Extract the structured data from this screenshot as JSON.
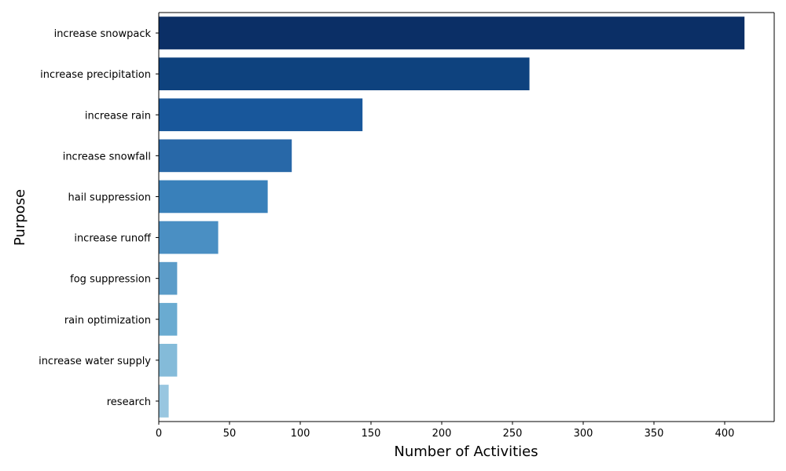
{
  "chart_data": {
    "type": "bar",
    "orientation": "horizontal",
    "title": "",
    "xlabel": "Number of Activities",
    "ylabel": "Purpose",
    "xlim": [
      0,
      435
    ],
    "xticks": [
      0,
      50,
      100,
      150,
      200,
      250,
      300,
      350,
      400
    ],
    "grid": false,
    "legend": "none",
    "categories": [
      "increase snowpack",
      "increase precipitation",
      "increase rain",
      "increase snowfall",
      "hail suppression",
      "increase runoff",
      "fog suppression",
      "rain optimization",
      "increase water supply",
      "research"
    ],
    "values": [
      414,
      262,
      144,
      94,
      77,
      42,
      13,
      13,
      13,
      7
    ],
    "colors": [
      "#0b2f66",
      "#0e427e",
      "#18579b",
      "#2868a8",
      "#3980ba",
      "#4a8fc3",
      "#5b9cc9",
      "#6aabd1",
      "#84bbd9",
      "#98c6e0"
    ]
  }
}
